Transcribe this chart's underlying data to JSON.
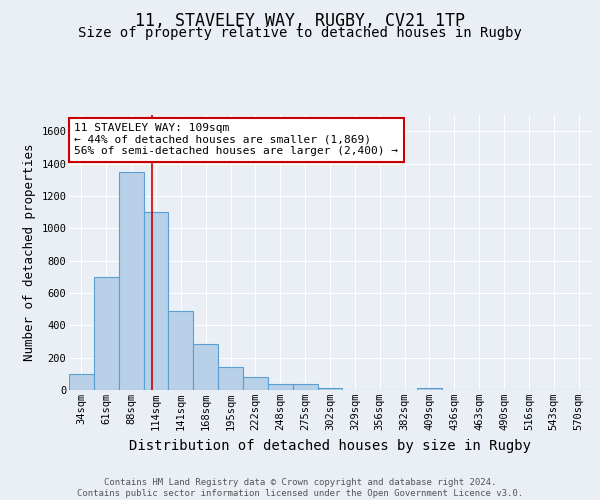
{
  "title1": "11, STAVELEY WAY, RUGBY, CV21 1TP",
  "title2": "Size of property relative to detached houses in Rugby",
  "xlabel": "Distribution of detached houses by size in Rugby",
  "ylabel": "Number of detached properties",
  "bar_labels": [
    "34sqm",
    "61sqm",
    "88sqm",
    "114sqm",
    "141sqm",
    "168sqm",
    "195sqm",
    "222sqm",
    "248sqm",
    "275sqm",
    "302sqm",
    "329sqm",
    "356sqm",
    "382sqm",
    "409sqm",
    "436sqm",
    "463sqm",
    "490sqm",
    "516sqm",
    "543sqm",
    "570sqm"
  ],
  "bar_values": [
    100,
    700,
    1350,
    1100,
    490,
    285,
    145,
    80,
    35,
    35,
    15,
    0,
    0,
    0,
    15,
    0,
    0,
    0,
    0,
    0,
    0
  ],
  "bar_color": "#b8d0e8",
  "bar_edge_color": "#5a9fd4",
  "bg_color": "#eaeff5",
  "plot_bg_color": "#eaeff5",
  "grid_color": "#ffffff",
  "red_line_bar_index": 2.85,
  "annotation_text": "11 STAVELEY WAY: 109sqm\n← 44% of detached houses are smaller (1,869)\n56% of semi-detached houses are larger (2,400) →",
  "annotation_box_color": "#ffffff",
  "annotation_box_edge": "#cc0000",
  "ylim": [
    0,
    1700
  ],
  "yticks": [
    0,
    200,
    400,
    600,
    800,
    1000,
    1200,
    1400,
    1600
  ],
  "footer": "Contains HM Land Registry data © Crown copyright and database right 2024.\nContains public sector information licensed under the Open Government Licence v3.0.",
  "title1_fontsize": 12,
  "title2_fontsize": 10,
  "xlabel_fontsize": 10,
  "ylabel_fontsize": 9,
  "tick_fontsize": 7.5,
  "annotation_fontsize": 8,
  "footer_fontsize": 6.5
}
